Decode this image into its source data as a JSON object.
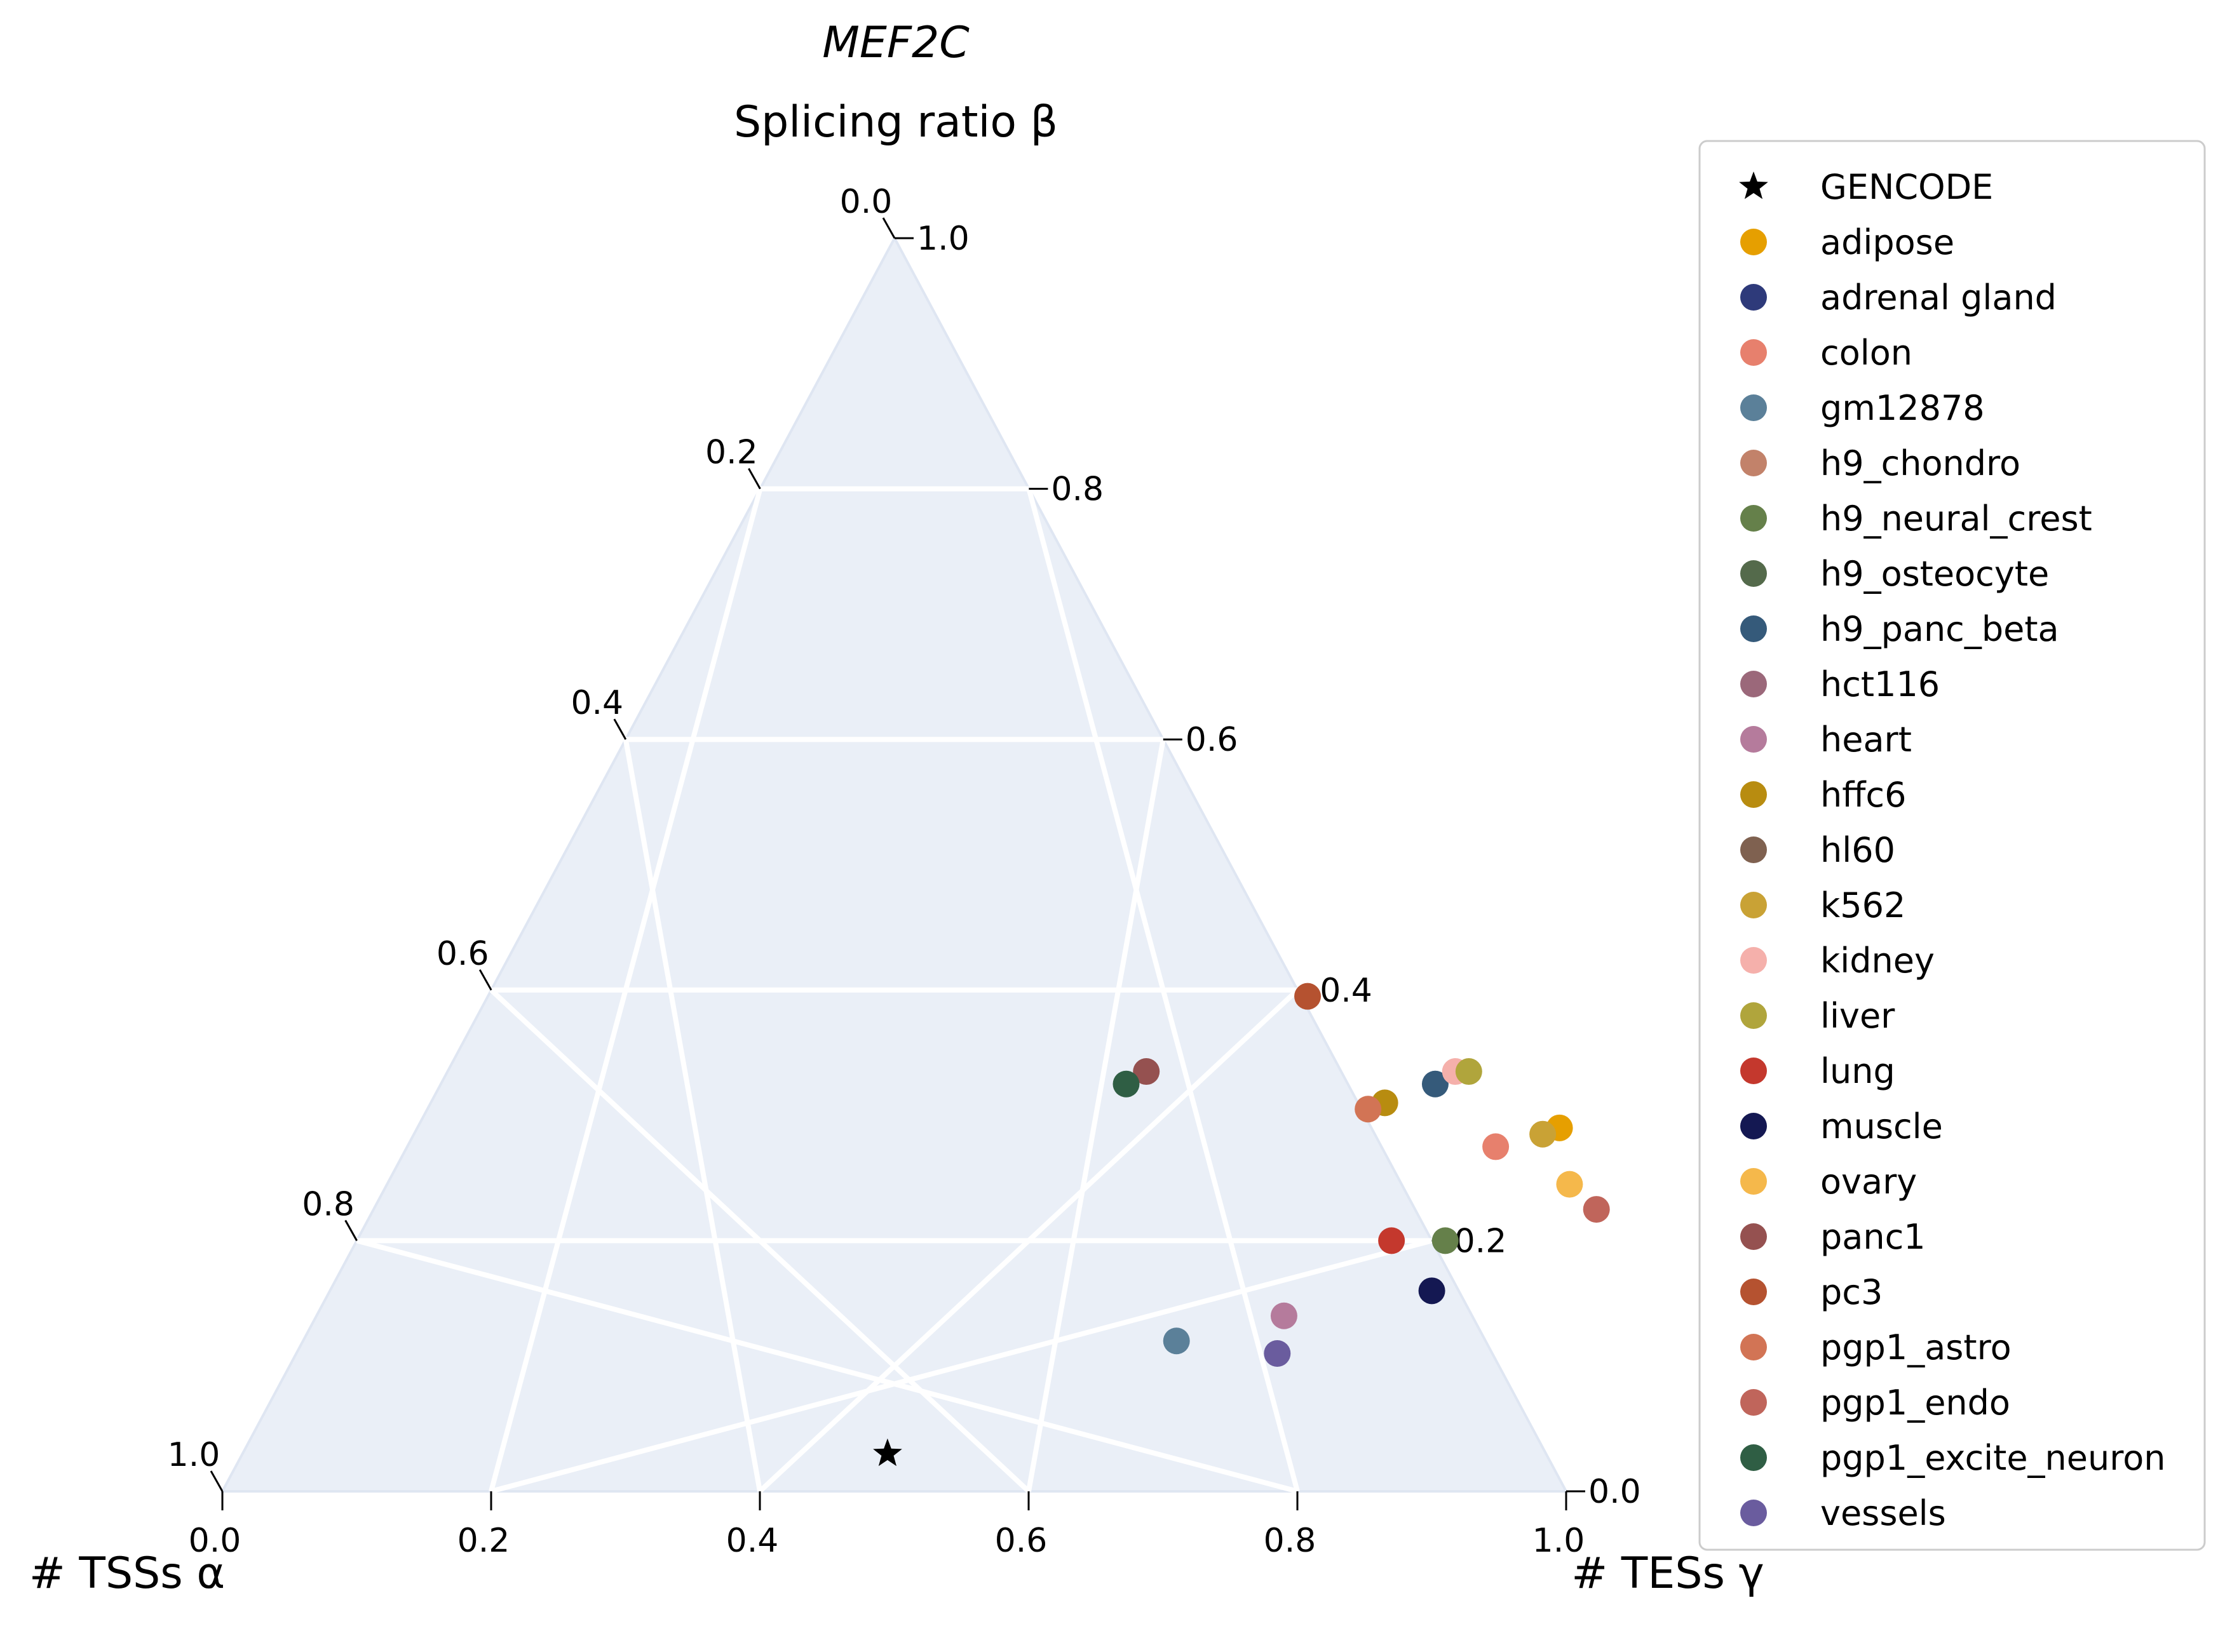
{
  "chart_data": {
    "type": "scatter",
    "subtype": "ternary",
    "title": "MEF2C",
    "axes": {
      "top": {
        "label": "Splicing ratio β",
        "component": "splicing_ratio_beta",
        "ticks": [
          "0.0",
          "0.2",
          "0.4",
          "0.6",
          "0.8",
          "1.0"
        ]
      },
      "left": {
        "label": "# TSSs α",
        "component": "tss_alpha",
        "ticks": [
          "0.0",
          "0.2",
          "0.4",
          "0.6",
          "0.8",
          "1.0"
        ]
      },
      "right": {
        "label": "# TESs γ",
        "component": "tes_gamma",
        "ticks": [
          "0.0",
          "0.2",
          "0.4",
          "0.6",
          "0.8",
          "1.0"
        ]
      }
    },
    "range": [
      0,
      1
    ],
    "grid": true,
    "legend": "right",
    "background_color": "#eaeff7",
    "grid_color": "#ffffff",
    "series": [
      {
        "name": "GENCODE",
        "marker": "star",
        "color": "#000000",
        "points": [
          {
            "tes": 0.48,
            "splice": 0.03
          }
        ]
      },
      {
        "name": "adipose",
        "color": "#e69f00",
        "points": [
          {
            "tes": 0.85,
            "splice": 0.29
          }
        ]
      },
      {
        "name": "adrenal gland",
        "color": "#2e3a7a",
        "points": []
      },
      {
        "name": "colon",
        "color": "#e7806d",
        "points": [
          {
            "tes": 0.81,
            "splice": 0.275
          }
        ]
      },
      {
        "name": "gm12878",
        "color": "#5b8099",
        "points": [
          {
            "tes": 0.65,
            "splice": 0.12
          }
        ]
      },
      {
        "name": "h9_chondro",
        "color": "#c2826a",
        "points": []
      },
      {
        "name": "h9_neural_crest",
        "color": "#65804a",
        "points": [
          {
            "tes": 0.81,
            "splice": 0.2
          }
        ]
      },
      {
        "name": "h9_osteocyte",
        "color": "#546a4b",
        "points": []
      },
      {
        "name": "h9_panc_beta",
        "color": "#355a7a",
        "points": [
          {
            "tes": 0.74,
            "splice": 0.325
          }
        ]
      },
      {
        "name": "hct116",
        "color": "#9b687a",
        "points": []
      },
      {
        "name": "heart",
        "color": "#b57b9c",
        "points": [
          {
            "tes": 0.72,
            "splice": 0.14
          }
        ]
      },
      {
        "name": "hffc6",
        "color": "#b88c10",
        "points": [
          {
            "tes": 0.71,
            "splice": 0.31
          }
        ]
      },
      {
        "name": "hl60",
        "color": "#7f6150",
        "points": []
      },
      {
        "name": "k562",
        "color": "#c9a235",
        "points": [
          {
            "tes": 0.84,
            "splice": 0.285
          }
        ]
      },
      {
        "name": "kidney",
        "color": "#f5b0ab",
        "points": [
          {
            "tes": 0.75,
            "splice": 0.335
          }
        ]
      },
      {
        "name": "liver",
        "color": "#b0a53c",
        "points": [
          {
            "tes": 0.76,
            "splice": 0.335
          }
        ]
      },
      {
        "name": "lung",
        "color": "#c4382d",
        "points": [
          {
            "tes": 0.77,
            "splice": 0.2
          }
        ]
      },
      {
        "name": "muscle",
        "color": "#141852",
        "points": [
          {
            "tes": 0.82,
            "splice": 0.16
          }
        ]
      },
      {
        "name": "ovary",
        "color": "#f5b84b",
        "points": [
          {
            "tes": 0.88,
            "splice": 0.245
          }
        ]
      },
      {
        "name": "panc1",
        "color": "#955150",
        "points": [
          {
            "tes": 0.52,
            "splice": 0.335
          }
        ]
      },
      {
        "name": "pc3",
        "color": "#b55230",
        "points": [
          {
            "tes": 0.61,
            "splice": 0.395
          }
        ]
      },
      {
        "name": "pgp1_astro",
        "color": "#d27455",
        "points": [
          {
            "tes": 0.7,
            "splice": 0.305
          }
        ]
      },
      {
        "name": "pgp1_endo",
        "color": "#c0655b",
        "points": [
          {
            "tes": 0.91,
            "splice": 0.225
          }
        ]
      },
      {
        "name": "pgp1_excite_neuron",
        "color": "#2f5e44",
        "points": [
          {
            "tes": 0.51,
            "splice": 0.325
          }
        ]
      },
      {
        "name": "vessels",
        "color": "#6a5c9e",
        "points": [
          {
            "tes": 0.73,
            "splice": 0.11
          }
        ]
      }
    ]
  }
}
